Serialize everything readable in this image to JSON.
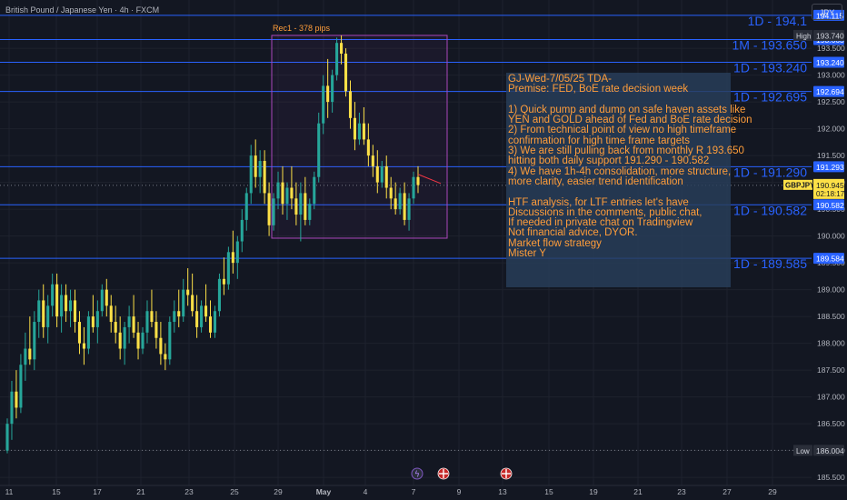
{
  "header": {
    "symbol_title": "British Pound / Japanese Yen · 4h · FXCM",
    "currency_button": "JPY"
  },
  "chart_data": {
    "type": "candlestick",
    "symbol": "GBPJPY",
    "timeframe": "4h",
    "ylim": [
      185.35,
      194.4
    ],
    "y_ticks": [
      185.5,
      186.0,
      186.5,
      187.0,
      187.5,
      188.0,
      188.5,
      189.0,
      189.5,
      190.0,
      190.5,
      191.0,
      191.5,
      192.0,
      192.5,
      193.0,
      193.5
    ],
    "x_ticks": [
      "11",
      "15",
      "17",
      "21",
      "23",
      "25",
      "29",
      "May",
      "4",
      "7",
      "9",
      "13",
      "15",
      "19",
      "21",
      "23",
      "27",
      "29"
    ],
    "colors": {
      "up": "#26a69a",
      "down": "#fde047",
      "level_line": "#2962ff",
      "rect": "#ab47bc",
      "note_text": "#ff9d3a"
    },
    "levels": [
      {
        "price": 194.115,
        "tag": "194.115",
        "label": "1D - 194.1"
      },
      {
        "price": 193.663,
        "tag": "193.663",
        "label": "1M - 193.650"
      },
      {
        "price": 193.24,
        "tag": "193.240",
        "label": "1D - 193.240"
      },
      {
        "price": 192.694,
        "tag": "192.694",
        "label": "1D - 192.695"
      },
      {
        "price": 191.293,
        "tag": "191.293",
        "label": "1D - 191.290"
      },
      {
        "price": 190.582,
        "tag": "190.582",
        "label": "1D - 190.582"
      },
      {
        "price": 189.584,
        "tag": "189.584",
        "label": "1D - 189.585"
      }
    ],
    "high": {
      "label": "High",
      "price": 193.74,
      "tag": "193.740"
    },
    "low": {
      "label": "Low",
      "price": 186.004,
      "tag": "186.004"
    },
    "current": {
      "symbol": "GBPJPY",
      "price": 190.945,
      "tag": "190.945",
      "countdown": "02:18:17"
    },
    "range_box": {
      "label": "Rec1 - 378 pips",
      "price_top": 193.74,
      "price_bottom": 189.96
    },
    "candles": [
      {
        "o": 186.0,
        "h": 186.6,
        "l": 185.95,
        "c": 186.5
      },
      {
        "o": 186.5,
        "h": 187.3,
        "l": 186.2,
        "c": 187.1
      },
      {
        "o": 187.1,
        "h": 187.5,
        "l": 186.6,
        "c": 186.8
      },
      {
        "o": 186.8,
        "h": 187.8,
        "l": 186.7,
        "c": 187.6
      },
      {
        "o": 187.6,
        "h": 188.2,
        "l": 187.3,
        "c": 187.9
      },
      {
        "o": 187.9,
        "h": 188.5,
        "l": 187.6,
        "c": 187.7
      },
      {
        "o": 187.7,
        "h": 188.6,
        "l": 187.5,
        "c": 188.4
      },
      {
        "o": 188.4,
        "h": 189.0,
        "l": 188.1,
        "c": 188.8
      },
      {
        "o": 188.8,
        "h": 189.1,
        "l": 188.1,
        "c": 188.3
      },
      {
        "o": 188.3,
        "h": 188.9,
        "l": 188.0,
        "c": 188.7
      },
      {
        "o": 188.7,
        "h": 189.3,
        "l": 188.5,
        "c": 189.1
      },
      {
        "o": 189.1,
        "h": 189.3,
        "l": 188.3,
        "c": 188.5
      },
      {
        "o": 188.5,
        "h": 189.1,
        "l": 188.2,
        "c": 188.9
      },
      {
        "o": 188.9,
        "h": 189.1,
        "l": 188.4,
        "c": 188.6
      },
      {
        "o": 188.6,
        "h": 189.0,
        "l": 188.3,
        "c": 188.8
      },
      {
        "o": 188.8,
        "h": 189.0,
        "l": 188.2,
        "c": 188.4
      },
      {
        "o": 188.4,
        "h": 188.6,
        "l": 187.8,
        "c": 188.0
      },
      {
        "o": 188.0,
        "h": 188.3,
        "l": 187.6,
        "c": 187.9
      },
      {
        "o": 187.9,
        "h": 188.6,
        "l": 187.8,
        "c": 188.5
      },
      {
        "o": 188.5,
        "h": 188.9,
        "l": 188.2,
        "c": 188.3
      },
      {
        "o": 188.3,
        "h": 188.8,
        "l": 188.0,
        "c": 188.6
      },
      {
        "o": 188.6,
        "h": 189.1,
        "l": 188.5,
        "c": 189.0
      },
      {
        "o": 189.0,
        "h": 189.2,
        "l": 188.5,
        "c": 188.7
      },
      {
        "o": 188.7,
        "h": 188.9,
        "l": 188.2,
        "c": 188.4
      },
      {
        "o": 188.4,
        "h": 188.7,
        "l": 188.0,
        "c": 188.2
      },
      {
        "o": 188.2,
        "h": 188.5,
        "l": 187.7,
        "c": 187.9
      },
      {
        "o": 187.9,
        "h": 188.4,
        "l": 187.6,
        "c": 188.3
      },
      {
        "o": 188.3,
        "h": 188.7,
        "l": 188.0,
        "c": 188.5
      },
      {
        "o": 188.5,
        "h": 188.9,
        "l": 188.1,
        "c": 188.2
      },
      {
        "o": 188.2,
        "h": 188.4,
        "l": 187.7,
        "c": 187.9
      },
      {
        "o": 187.9,
        "h": 188.3,
        "l": 187.8,
        "c": 188.2
      },
      {
        "o": 188.2,
        "h": 188.8,
        "l": 188.0,
        "c": 188.6
      },
      {
        "o": 188.6,
        "h": 189.0,
        "l": 188.3,
        "c": 188.4
      },
      {
        "o": 188.4,
        "h": 188.6,
        "l": 187.9,
        "c": 188.1
      },
      {
        "o": 188.1,
        "h": 188.4,
        "l": 187.6,
        "c": 187.8
      },
      {
        "o": 187.8,
        "h": 188.0,
        "l": 187.5,
        "c": 187.7
      },
      {
        "o": 187.7,
        "h": 188.5,
        "l": 187.6,
        "c": 188.4
      },
      {
        "o": 188.4,
        "h": 188.8,
        "l": 188.2,
        "c": 188.6
      },
      {
        "o": 188.6,
        "h": 189.0,
        "l": 188.3,
        "c": 188.5
      },
      {
        "o": 188.5,
        "h": 189.2,
        "l": 188.4,
        "c": 189.0
      },
      {
        "o": 189.0,
        "h": 189.4,
        "l": 188.7,
        "c": 188.9
      },
      {
        "o": 188.9,
        "h": 189.3,
        "l": 188.5,
        "c": 188.6
      },
      {
        "o": 188.6,
        "h": 188.9,
        "l": 188.1,
        "c": 188.3
      },
      {
        "o": 188.3,
        "h": 188.8,
        "l": 188.2,
        "c": 188.7
      },
      {
        "o": 188.7,
        "h": 189.1,
        "l": 188.4,
        "c": 188.5
      },
      {
        "o": 188.5,
        "h": 188.8,
        "l": 188.1,
        "c": 188.2
      },
      {
        "o": 188.2,
        "h": 188.7,
        "l": 188.1,
        "c": 188.6
      },
      {
        "o": 188.6,
        "h": 189.3,
        "l": 188.5,
        "c": 189.2
      },
      {
        "o": 189.2,
        "h": 189.6,
        "l": 188.9,
        "c": 189.1
      },
      {
        "o": 189.1,
        "h": 189.8,
        "l": 189.0,
        "c": 189.7
      },
      {
        "o": 189.7,
        "h": 190.1,
        "l": 189.3,
        "c": 189.5
      },
      {
        "o": 189.5,
        "h": 190.0,
        "l": 189.2,
        "c": 189.9
      },
      {
        "o": 189.9,
        "h": 190.5,
        "l": 189.7,
        "c": 190.3
      },
      {
        "o": 190.3,
        "h": 190.9,
        "l": 190.1,
        "c": 190.8
      },
      {
        "o": 190.8,
        "h": 191.7,
        "l": 190.6,
        "c": 191.5
      },
      {
        "o": 191.5,
        "h": 191.8,
        "l": 190.9,
        "c": 191.1
      },
      {
        "o": 191.1,
        "h": 191.6,
        "l": 190.8,
        "c": 191.4
      },
      {
        "o": 191.4,
        "h": 191.6,
        "l": 190.6,
        "c": 190.8
      },
      {
        "o": 190.8,
        "h": 191.0,
        "l": 190.0,
        "c": 190.2
      },
      {
        "o": 190.2,
        "h": 190.8,
        "l": 190.1,
        "c": 190.7
      },
      {
        "o": 190.7,
        "h": 191.2,
        "l": 190.5,
        "c": 191.0
      },
      {
        "o": 191.0,
        "h": 191.3,
        "l": 190.4,
        "c": 190.6
      },
      {
        "o": 190.6,
        "h": 191.0,
        "l": 190.3,
        "c": 190.9
      },
      {
        "o": 190.9,
        "h": 191.3,
        "l": 190.5,
        "c": 190.7
      },
      {
        "o": 190.7,
        "h": 191.0,
        "l": 190.2,
        "c": 190.4
      },
      {
        "o": 190.4,
        "h": 191.0,
        "l": 189.9,
        "c": 190.8
      },
      {
        "o": 190.8,
        "h": 191.1,
        "l": 190.2,
        "c": 190.3
      },
      {
        "o": 190.3,
        "h": 190.7,
        "l": 190.2,
        "c": 190.6
      },
      {
        "o": 190.6,
        "h": 191.2,
        "l": 190.5,
        "c": 191.1
      },
      {
        "o": 191.1,
        "h": 192.3,
        "l": 191.0,
        "c": 192.1
      },
      {
        "o": 192.1,
        "h": 193.0,
        "l": 191.9,
        "c": 192.8
      },
      {
        "o": 192.8,
        "h": 193.3,
        "l": 192.2,
        "c": 192.5
      },
      {
        "o": 192.5,
        "h": 193.1,
        "l": 192.3,
        "c": 193.0
      },
      {
        "o": 193.0,
        "h": 193.7,
        "l": 192.9,
        "c": 193.6
      },
      {
        "o": 193.6,
        "h": 193.74,
        "l": 193.2,
        "c": 193.4
      },
      {
        "o": 193.4,
        "h": 193.5,
        "l": 192.6,
        "c": 192.7
      },
      {
        "o": 192.7,
        "h": 192.9,
        "l": 192.0,
        "c": 192.2
      },
      {
        "o": 192.2,
        "h": 192.5,
        "l": 191.6,
        "c": 191.8
      },
      {
        "o": 191.8,
        "h": 192.3,
        "l": 191.7,
        "c": 192.1
      },
      {
        "o": 192.1,
        "h": 192.4,
        "l": 191.7,
        "c": 191.8
      },
      {
        "o": 191.8,
        "h": 192.1,
        "l": 191.3,
        "c": 191.5
      },
      {
        "o": 191.5,
        "h": 191.7,
        "l": 191.1,
        "c": 191.3
      },
      {
        "o": 191.3,
        "h": 191.6,
        "l": 190.8,
        "c": 191.0
      },
      {
        "o": 191.0,
        "h": 191.4,
        "l": 190.9,
        "c": 191.3
      },
      {
        "o": 191.3,
        "h": 191.5,
        "l": 190.7,
        "c": 190.9
      },
      {
        "o": 190.9,
        "h": 191.1,
        "l": 190.5,
        "c": 190.7
      },
      {
        "o": 190.7,
        "h": 191.0,
        "l": 190.4,
        "c": 190.5
      },
      {
        "o": 190.5,
        "h": 190.9,
        "l": 190.4,
        "c": 190.8
      },
      {
        "o": 190.8,
        "h": 191.0,
        "l": 190.2,
        "c": 190.3
      },
      {
        "o": 190.3,
        "h": 190.8,
        "l": 190.1,
        "c": 190.7
      },
      {
        "o": 190.7,
        "h": 191.2,
        "l": 190.6,
        "c": 191.1
      },
      {
        "o": 191.1,
        "h": 191.3,
        "l": 190.8,
        "c": 190.95
      }
    ]
  },
  "note": {
    "lines": [
      "GJ-Wed-7/05/25 TDA-",
      "Premise: FED, BoE rate decision week",
      "",
      "1) Quick pump and dump on safe haven assets like",
      "YEN and GOLD ahead of Fed and BoE rate decision",
      "2) From technical point of view no high timeframe",
      "confirmation for high time frame targets",
      "3) We are still pulling back from monthly R 193.650",
      "hitting both daily support 191.290 - 190.582",
      "4) We have 1h-4h consolidation, more structure,",
      "more clarity, easier trend identification",
      "",
      "HTF analysis, for LTF entries let's have",
      "Discussions in the comments, public chat,",
      "If needed in private chat on Tradingview",
      "Not financial advice, DYOR.",
      "Market flow strategy",
      "Mister Y"
    ]
  },
  "events": [
    {
      "icon": "lightning-event-icon",
      "position_label": "7"
    },
    {
      "icon": "uk-flag-event-icon",
      "position_label": "7"
    },
    {
      "icon": "uk-flag-event-icon",
      "position_label": "13"
    }
  ]
}
